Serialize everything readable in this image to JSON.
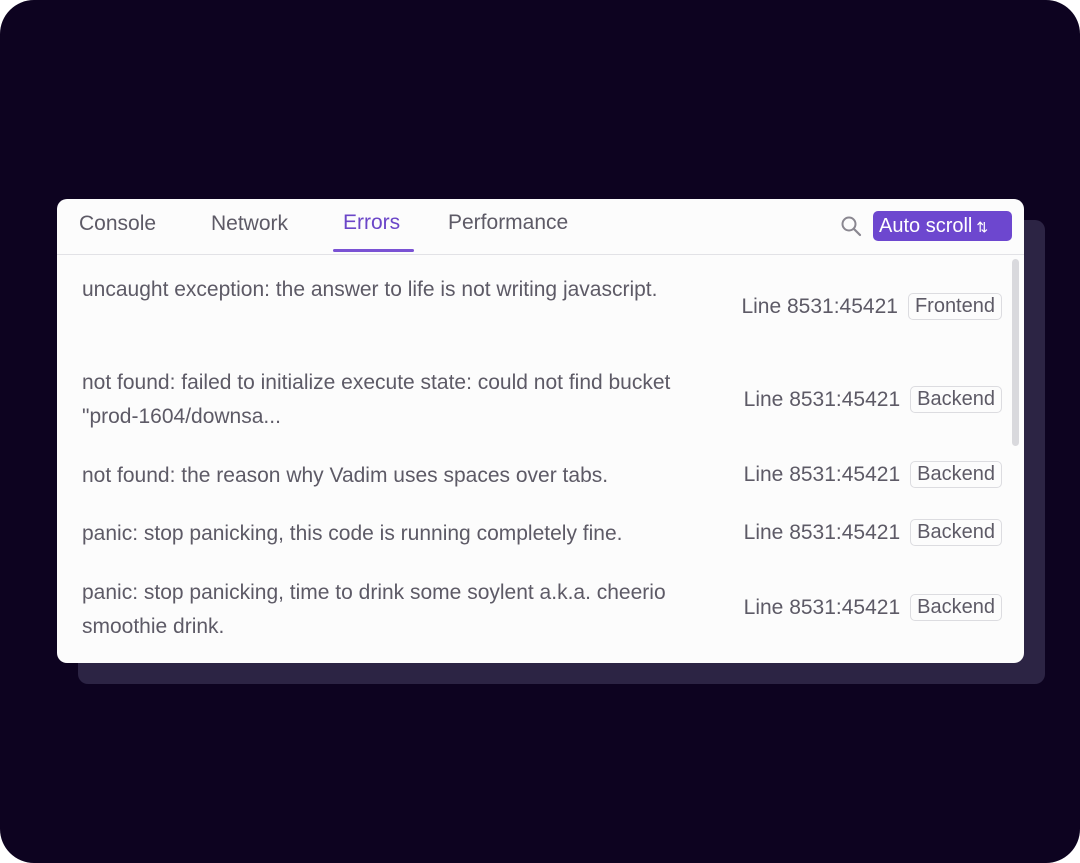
{
  "tabs": [
    "Console",
    "Network",
    "Errors",
    "Performance"
  ],
  "active_tab": "Errors",
  "auto_scroll": {
    "label": "Auto scroll",
    "icon": "arrows-up-down-icon"
  },
  "accent": "#6d47cf",
  "errors": [
    {
      "message": "uncaught exception: the answer to life is not writing javascript.",
      "line": "Line 8531:45421",
      "source": "Frontend"
    },
    {
      "message": "not found: failed to initialize execute state: could not find bucket \"prod-1604/downsa...",
      "line": "Line 8531:45421",
      "source": "Backend"
    },
    {
      "message": "not found: the reason why Vadim uses spaces over tabs.",
      "line": "Line 8531:45421",
      "source": "Backend"
    },
    {
      "message": "panic: stop panicking, this code is running completely fine.",
      "line": "Line 8531:45421",
      "source": "Backend"
    },
    {
      "message": "panic: stop panicking, time to drink some soylent a.k.a. cheerio smoothie drink.",
      "line": "Line 8531:45421",
      "source": "Backend"
    }
  ]
}
